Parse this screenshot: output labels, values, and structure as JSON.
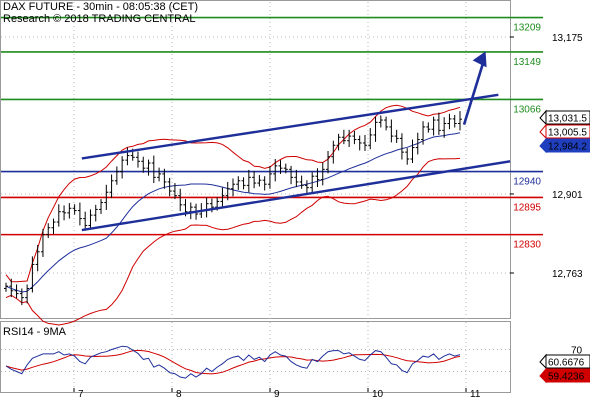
{
  "header": {
    "title": "DAX FUTURE - 30min - 08:05:38 (CET)",
    "credit": "Research © 2018 TRADING CENTRAL"
  },
  "rsi_panel": {
    "title": "RSI14 - 9MA"
  },
  "colors": {
    "resistance": "#1e8c1e",
    "support": "#d00000",
    "pivot": "#1f2f9a",
    "channel": "#1f2f9a",
    "bollinger": "#d00000",
    "moving_average": "#1f2f9a",
    "price_tag_bg": "#ffffff",
    "ma_tag_bg": "#1f3fbf",
    "rsi_tag_bg": "#ffffff",
    "rsi_ma_tag_bg": "#d00000"
  },
  "chart_data": {
    "type": "candlestick",
    "instrument": "DAX FUTURE",
    "timeframe": "30min",
    "x_labels": [
      "7",
      "8",
      "9",
      "10",
      "11"
    ],
    "y_ticks": [
      12763,
      12901,
      13175
    ],
    "ylim": [
      12700,
      13240
    ],
    "levels": [
      {
        "value": 13209,
        "label": "13209",
        "kind": "resistance"
      },
      {
        "value": 13149,
        "label": "13149",
        "kind": "resistance"
      },
      {
        "value": 13066,
        "label": "13066",
        "kind": "resistance"
      },
      {
        "value": 12940,
        "label": "12940",
        "kind": "pivot"
      },
      {
        "value": 12895,
        "label": "12895",
        "kind": "support"
      },
      {
        "value": 12830,
        "label": "12830",
        "kind": "support"
      }
    ],
    "tags": [
      {
        "value": 13031.5,
        "label": "13,031.5",
        "kind": "price"
      },
      {
        "value": 13005.5,
        "label": "13,005.5",
        "kind": "bollinger"
      },
      {
        "value": 12984.2,
        "label": "12,984.2",
        "kind": "ma"
      }
    ],
    "channel": {
      "upper": [
        {
          "day": 7.08,
          "price": 12963
        },
        {
          "day": 11.33,
          "price": 13074
        }
      ],
      "lower": [
        {
          "day": 7.08,
          "price": 12838
        },
        {
          "day": 11.45,
          "price": 12958
        }
      ]
    },
    "arrow": {
      "from": {
        "day": 10.98,
        "price": 13022
      },
      "to": {
        "day": 11.2,
        "price": 13150
      }
    },
    "closes": [
      12740,
      12732,
      12727,
      12720,
      12736,
      12778,
      12800,
      12830,
      12842,
      12852,
      12870,
      12868,
      12876,
      12872,
      12858,
      12846,
      12864,
      12874,
      12886,
      12904,
      12924,
      12940,
      12960,
      12968,
      12965,
      12958,
      12946,
      12955,
      12930,
      12936,
      12922,
      12906,
      12898,
      12882,
      12870,
      12878,
      12866,
      12872,
      12884,
      12878,
      12888,
      12898,
      12910,
      12918,
      12924,
      12916,
      12930,
      12920,
      12925,
      12918,
      12936,
      12950,
      12946,
      12944,
      12930,
      12922,
      12916,
      12912,
      12932,
      12926,
      12944,
      12966,
      12986,
      13000,
      12994,
      13002,
      12996,
      12990,
      12986,
      13004,
      13026,
      13030,
      13018,
      13002,
      12998,
      12974,
      12962,
      12982,
      12996,
      13018,
      13014,
      13030,
      13012,
      13024,
      13032,
      13024,
      13031.5
    ],
    "rsi": {
      "ylim": [
        0,
        100
      ],
      "y_ticks": [
        30,
        70
      ],
      "tags": [
        {
          "value": 60.6676,
          "label": "60.6676",
          "kind": "rsi"
        },
        {
          "value": 59.4236,
          "label": "59.4236",
          "kind": "rsi_ma"
        }
      ],
      "values": [
        40,
        34,
        30,
        26,
        42,
        54,
        58,
        62,
        62,
        62,
        66,
        60,
        62,
        58,
        48,
        44,
        56,
        60,
        64,
        66,
        70,
        73,
        76,
        75,
        69,
        63,
        52,
        54,
        38,
        42,
        36,
        28,
        26,
        20,
        18,
        26,
        20,
        26,
        36,
        30,
        38,
        44,
        52,
        56,
        58,
        50,
        60,
        52,
        56,
        48,
        60,
        66,
        60,
        58,
        48,
        42,
        38,
        36,
        52,
        48,
        58,
        66,
        68,
        68,
        62,
        64,
        58,
        52,
        50,
        60,
        68,
        66,
        56,
        44,
        42,
        32,
        28,
        44,
        50,
        58,
        56,
        62,
        52,
        58,
        62,
        58,
        60.6676
      ]
    }
  }
}
